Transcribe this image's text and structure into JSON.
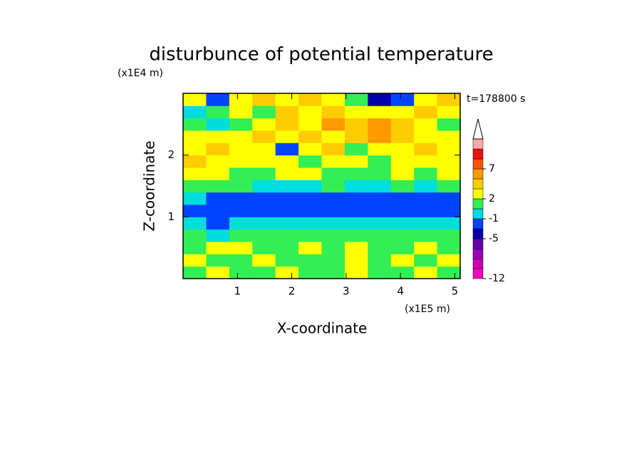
{
  "chart_data": {
    "type": "contour",
    "title": "disturbunce of potential temperature",
    "x_label": "X-coordinate",
    "y_label": "Z-coordinate",
    "x_unit": "(x1E5 m)",
    "y_unit": "(x1E4 m)",
    "annotation": "t=178800 s",
    "xlim": [
      0,
      5.1
    ],
    "ylim": [
      0,
      3
    ],
    "xticks": [
      1,
      2,
      3,
      4,
      5
    ],
    "yticks": [
      1,
      2
    ],
    "x": [
      0.2125,
      0.6375,
      1.0625,
      1.4875,
      1.9125,
      2.3375,
      2.7625,
      3.1875,
      3.6125,
      4.0375,
      4.4625,
      4.8875
    ],
    "z": [
      0.1,
      0.3,
      0.5,
      0.7,
      0.9,
      1.1,
      1.3,
      1.5,
      1.7,
      1.9,
      2.1,
      2.3,
      2.5,
      2.7,
      2.9
    ],
    "values": [
      [
        0.8,
        2.5,
        0.8,
        0.8,
        2.5,
        0.8,
        0.8,
        2.5,
        0.8,
        0.8,
        2.5,
        0.8
      ],
      [
        2.5,
        0.8,
        0.8,
        2.5,
        0.8,
        0.8,
        0.8,
        2.5,
        0.8,
        2.5,
        0.8,
        2.5
      ],
      [
        0.8,
        2.5,
        2.5,
        0.8,
        0.8,
        2.5,
        0.8,
        2.5,
        0.8,
        0.8,
        2.5,
        0.8
      ],
      [
        0.8,
        -0.5,
        0.8,
        0.8,
        0.8,
        0.8,
        0.8,
        0.8,
        0.8,
        0.8,
        0.8,
        0.8
      ],
      [
        -0.5,
        -3,
        -0.5,
        -0.5,
        -0.5,
        -0.5,
        -0.5,
        -0.5,
        -0.5,
        -0.5,
        -0.5,
        -0.5
      ],
      [
        -3,
        -3,
        -3,
        -3,
        -3,
        -3,
        -3,
        -3,
        -3,
        -3,
        -3,
        -3
      ],
      [
        -0.5,
        -3,
        -3,
        -3,
        -3,
        -3,
        -3,
        -3,
        -3,
        -3,
        -3,
        -3
      ],
      [
        0.8,
        0.8,
        0.8,
        -0.5,
        -0.5,
        -0.5,
        0.8,
        -0.5,
        -0.5,
        0.8,
        -0.5,
        0.8
      ],
      [
        2.5,
        2.5,
        0.8,
        0.8,
        2.5,
        2.5,
        0.8,
        0.8,
        0.8,
        2.5,
        0.8,
        2.5
      ],
      [
        4,
        2.5,
        2.5,
        2.5,
        2.5,
        0.8,
        2.5,
        2.5,
        0.8,
        2.5,
        2.5,
        2.5
      ],
      [
        2.5,
        4,
        2.5,
        2.5,
        -3,
        2.5,
        4,
        0.8,
        2.5,
        2.5,
        4,
        2.5
      ],
      [
        2.5,
        2.5,
        2.5,
        4,
        2.5,
        4,
        2.5,
        4,
        5.5,
        4,
        2.5,
        2.5
      ],
      [
        0.8,
        -0.5,
        0.8,
        2.5,
        4,
        2.5,
        5.5,
        4,
        5.5,
        4,
        2.5,
        0.8
      ],
      [
        -0.5,
        0.8,
        2.5,
        0.8,
        4,
        2.5,
        4,
        2.5,
        2.5,
        2.5,
        4,
        2.5
      ],
      [
        2.5,
        -3,
        2.5,
        4,
        2.5,
        4,
        2.5,
        0.8,
        -4.5,
        -3,
        2.5,
        4
      ]
    ],
    "colorbar": {
      "ticks": [
        -12,
        -5,
        -1,
        2,
        7
      ],
      "colors": [
        "#ff00bb",
        "#cc00aa",
        "#9900bb",
        "#6600aa",
        "#0000aa",
        "#0044ff",
        "#00dddd",
        "#33ee55",
        "#ffff00",
        "#ffcc00",
        "#ff9900",
        "#ff5500",
        "#ee1111",
        "#ffaaaa"
      ]
    }
  }
}
